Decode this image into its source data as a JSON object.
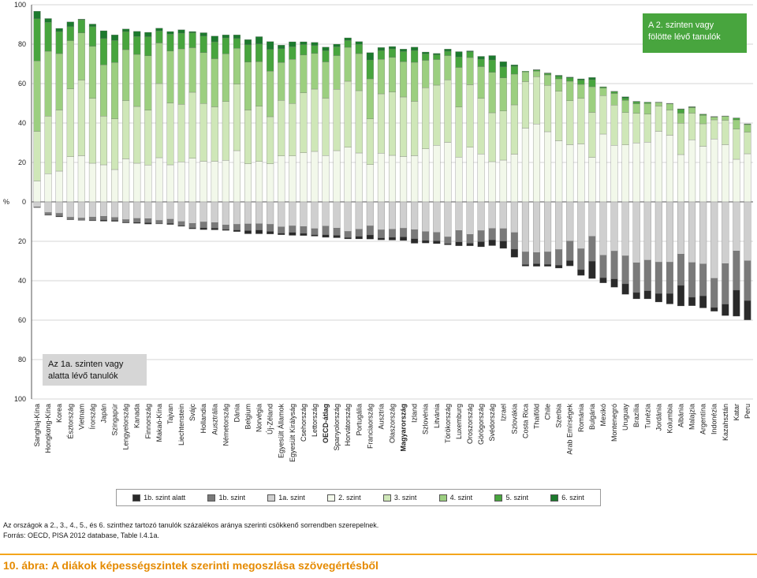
{
  "chart_data": {
    "type": "bar",
    "subtype": "diverging-stacked",
    "ylabel": "%",
    "y_ticks": [
      "100",
      "80",
      "60",
      "40",
      "20",
      "0",
      "20",
      "40",
      "60",
      "80",
      "100"
    ],
    "ylim": [
      -100,
      100
    ],
    "legend": {
      "position": "bottom",
      "entries": [
        {
          "label": "1b. szint alatt",
          "color": "#2a2a2a"
        },
        {
          "label": "1b. szint",
          "color": "#7a7a7a"
        },
        {
          "label": "1a. szint",
          "color": "#cfcfcf"
        },
        {
          "label": "2. szint",
          "color": "#f2f8ea"
        },
        {
          "label": "3. szint",
          "color": "#cfe7b8"
        },
        {
          "label": "4. szint",
          "color": "#9ccf80"
        },
        {
          "label": "5. szint",
          "color": "#48a53e"
        },
        {
          "label": "6. szint",
          "color": "#1c7a2d"
        }
      ]
    },
    "annotations": {
      "top": "A 2. szinten vagy fölötte lévő tanulók",
      "bottom": "Az 1a. szinten vagy alatta lévő tanulók"
    },
    "categories": [
      "Sanghaj-Kína",
      "Hongkong-Kína",
      "Korea",
      "Észtország",
      "Vietnam",
      "Írország",
      "Japán",
      "Szingapúr",
      "Lengyelország",
      "Kanada",
      "Finnország",
      "Makaó-Kína",
      "Tajvan",
      "Liechtenstein",
      "Svájc",
      "Hollandia",
      "Ausztrália",
      "Németország",
      "Dánia",
      "Belgium",
      "Norvégia",
      "Új-Zéland",
      "Egyesült Államok",
      "Egyesült Királyság",
      "Csehország",
      "Lettország",
      "OECD-átlag",
      "Spanyolország",
      "Horvátország",
      "Portugália",
      "Franciaország",
      "Ausztria",
      "Olaszország",
      "Magyarország",
      "Izland",
      "Szlovénia",
      "Litvánia",
      "Törökország",
      "Luxemburg",
      "Oroszország",
      "Görögország",
      "Svédország",
      "Izrael",
      "Szlovákia",
      "Costa Rica",
      "Thaiföld",
      "Chile",
      "Szerbia",
      "Arab Emírségek",
      "Románia",
      "Bulgária",
      "Mexikó",
      "Montenegró",
      "Uruguay",
      "Brazília",
      "Tunézia",
      "Jordánia",
      "Kolumbia",
      "Albánia",
      "Malajzia",
      "Argentína",
      "Indonézia",
      "Kazahsztán",
      "Katar",
      "Peru"
    ],
    "bold_categories": [
      "OECD-átlag",
      "Magyarország"
    ],
    "series": [
      {
        "name": "1b. szint alatt",
        "values": [
          -0.1,
          -0.2,
          -0.4,
          -0.2,
          -0.1,
          -0.3,
          -0.6,
          -0.5,
          -0.3,
          -0.5,
          -0.7,
          -0.2,
          -0.6,
          -0.4,
          -0.5,
          -0.9,
          -0.9,
          -0.5,
          -0.8,
          -1.6,
          -1.9,
          -1.3,
          -0.8,
          -1.5,
          -1.1,
          -0.7,
          -1.3,
          -1.2,
          -0.7,
          -1.3,
          -2.1,
          -1.0,
          -1.4,
          -1.8,
          -2.3,
          -1.3,
          -1.4,
          -0.6,
          -2.0,
          -1.3,
          -2.6,
          -2.9,
          -3.7,
          -4.1,
          -0.8,
          -1.3,
          -1.0,
          -1.5,
          -2.7,
          -2.9,
          -8.8,
          -2.6,
          -4.2,
          -5.3,
          -3.2,
          -4.1,
          -4.3,
          -5.3,
          -10.4,
          -4.3,
          -6.1,
          -1.9,
          -5.8,
          -13.2,
          -9.8
        ]
      },
      {
        "name": "1b. szint",
        "values": [
          -0.3,
          -1.2,
          -1.4,
          -1.1,
          -1.1,
          -1.6,
          -1.9,
          -1.5,
          -1.4,
          -2.0,
          -2.1,
          -1.6,
          -2.1,
          -2.0,
          -2.3,
          -3.0,
          -2.8,
          -2.3,
          -2.9,
          -3.4,
          -3.2,
          -3.6,
          -3.2,
          -3.3,
          -3.5,
          -3.1,
          -4.4,
          -3.7,
          -3.1,
          -3.6,
          -4.6,
          -4.1,
          -4.1,
          -4.4,
          -4.6,
          -4.5,
          -4.3,
          -3.4,
          -5.8,
          -4.5,
          -5.6,
          -5.8,
          -6.3,
          -8.4,
          -6.4,
          -5.7,
          -6.3,
          -7.9,
          -9.9,
          -10.6,
          -12.6,
          -11.4,
          -14.1,
          -14.2,
          -15.1,
          -15.5,
          -15.9,
          -15.9,
          -15.9,
          -17.6,
          -16.2,
          -14.8,
          -20.6,
          -19.9,
          -20.2
        ]
      },
      {
        "name": "1a. szint",
        "values": [
          -2.5,
          -5.4,
          -5.8,
          -7.8,
          -8.2,
          -7.7,
          -7.3,
          -7.9,
          -9.0,
          -8.4,
          -8.5,
          -9.4,
          -8.8,
          -10.0,
          -10.9,
          -10.2,
          -10.5,
          -11.7,
          -11.4,
          -11.2,
          -11.1,
          -11.4,
          -12.7,
          -12.2,
          -12.5,
          -13.6,
          -12.3,
          -13.3,
          -15.0,
          -13.9,
          -12.2,
          -14.2,
          -13.9,
          -13.4,
          -14.1,
          -15.1,
          -15.5,
          -17.8,
          -14.5,
          -16.5,
          -14.6,
          -13.5,
          -13.6,
          -15.6,
          -25.4,
          -25.7,
          -25.4,
          -24.2,
          -19.9,
          -23.8,
          -17.5,
          -27.1,
          -25.0,
          -27.4,
          -30.9,
          -29.6,
          -30.6,
          -30.6,
          -26.5,
          -30.8,
          -31.5,
          -38.8,
          -31.3,
          -24.9,
          -29.9
        ]
      },
      {
        "name": "2. szint",
        "values": [
          10.6,
          14.3,
          15.6,
          22.9,
          23.4,
          19.6,
          18.8,
          16.4,
          21.8,
          19.6,
          18.7,
          22.4,
          18.8,
          20.3,
          22.1,
          20.6,
          20.6,
          21.1,
          26.0,
          19.3,
          20.5,
          19.3,
          23.3,
          23.3,
          24.9,
          25.6,
          23.5,
          26.0,
          27.7,
          24.8,
          18.9,
          24.7,
          23.6,
          23.0,
          23.4,
          26.9,
          28.7,
          30.2,
          22.7,
          27.7,
          24.3,
          20.4,
          21.2,
          24.2,
          37.4,
          39.5,
          35.6,
          31.0,
          29.0,
          29.4,
          22.6,
          34.4,
          28.7,
          28.9,
          29.9,
          30.3,
          35.8,
          33.8,
          24.0,
          31.5,
          28.2,
          31.9,
          29.0,
          21.6,
          24.4
        ]
      },
      {
        "name": "3. szint",
        "values": [
          25.2,
          29.2,
          31.0,
          34.4,
          38.4,
          32.9,
          24.7,
          25.7,
          29.6,
          28.8,
          27.8,
          37.6,
          31.3,
          29.2,
          33.5,
          29.3,
          27.6,
          29.8,
          33.7,
          27.3,
          28.0,
          23.9,
          28.2,
          26.6,
          30.4,
          31.6,
          29.1,
          31.1,
          33.5,
          31.6,
          23.2,
          30.1,
          32.1,
          30.2,
          27.6,
          31.0,
          30.5,
          31.7,
          25.4,
          31.7,
          28.2,
          24.8,
          24.9,
          25.0,
          23.6,
          24.0,
          23.5,
          25.1,
          22.3,
          23.1,
          22.8,
          19.5,
          20.4,
          16.4,
          15.0,
          14.2,
          12.8,
          12.8,
          15.9,
          13.5,
          11.4,
          9.7,
          12.4,
          15.3,
          11.0
        ]
      },
      {
        "name": "4. szint",
        "values": [
          35.7,
          32.9,
          28.6,
          24.5,
          23.9,
          26.4,
          26.0,
          28.6,
          25.8,
          26.4,
          27.6,
          20.6,
          26.4,
          28.1,
          22.6,
          25.8,
          24.4,
          24.2,
          18.2,
          24.3,
          22.6,
          23.1,
          19.2,
          22.4,
          19.2,
          18.1,
          18.4,
          17.1,
          17.2,
          18.8,
          20.3,
          17.5,
          17.6,
          17.9,
          19.8,
          13.9,
          13.0,
          12.3,
          20.1,
          13.8,
          16.1,
          20.5,
          16.8,
          15.6,
          4.9,
          2.8,
          5.3,
          6.3,
          9.9,
          7.1,
          13.0,
          3.8,
          5.9,
          6.2,
          4.9,
          5.4,
          1.8,
          3.1,
          5.1,
          2.8,
          4.3,
          1.4,
          2.0,
          4.7,
          3.8
        ]
      },
      {
        "name": "5. szint",
        "values": [
          21.4,
          14.7,
          11.2,
          7.1,
          6.7,
          10.0,
          13.4,
          11.2,
          9.2,
          9.1,
          9.7,
          6.1,
          8.6,
          8.0,
          7.6,
          8.4,
          8.6,
          8.1,
          5.0,
          8.8,
          9.0,
          11.1,
          7.0,
          6.4,
          5.3,
          4.0,
          5.7,
          4.5,
          3.5,
          4.7,
          9.6,
          4.5,
          4.3,
          5.2,
          6.0,
          3.3,
          2.4,
          2.2,
          5.3,
          2.9,
          3.8,
          6.3,
          5.6,
          4.0,
          0.4,
          0.6,
          0.8,
          1.3,
          1.7,
          2.2,
          3.6,
          0.6,
          0.9,
          1.1,
          1.0,
          0.6,
          0.1,
          0.2,
          2.0,
          0.4,
          0.5,
          0.2,
          0.1,
          0.9,
          0.3
        ]
      },
      {
        "name": "6. szint",
        "values": [
          3.8,
          1.9,
          1.6,
          2.4,
          0.3,
          1.3,
          3.9,
          2.8,
          1.3,
          2.6,
          2.2,
          1.4,
          1.3,
          1.7,
          0.6,
          1.7,
          2.9,
          1.5,
          1.8,
          2.6,
          3.7,
          3.9,
          1.8,
          2.5,
          1.4,
          1.6,
          1.8,
          1.3,
          1.3,
          1.4,
          3.7,
          1.5,
          1.2,
          1.2,
          1.7,
          0.9,
          0.7,
          1.1,
          2.7,
          0.5,
          1.4,
          2.2,
          2.6,
          0.7,
          0.0,
          0.2,
          0.2,
          0.5,
          0.4,
          0.6,
          1.1,
          0.1,
          0.2,
          0.7,
          0.2,
          0.1,
          0.1,
          0.1,
          0.2,
          0.1,
          0.1,
          0.1,
          0.1,
          0.1,
          0.1
        ]
      }
    ]
  },
  "footnote": "Az országok a 2., 3., 4., 5., és 6. szinthez tartozó tanulók százalékos aránya szerinti csökkenő sorrendben szerepelnek.",
  "source": "Forrás: OECD, PISA 2012 database, Table I.4.1a.",
  "caption": "10. ábra: A diákok képességszintek szerinti megoszlása szövegértésből"
}
